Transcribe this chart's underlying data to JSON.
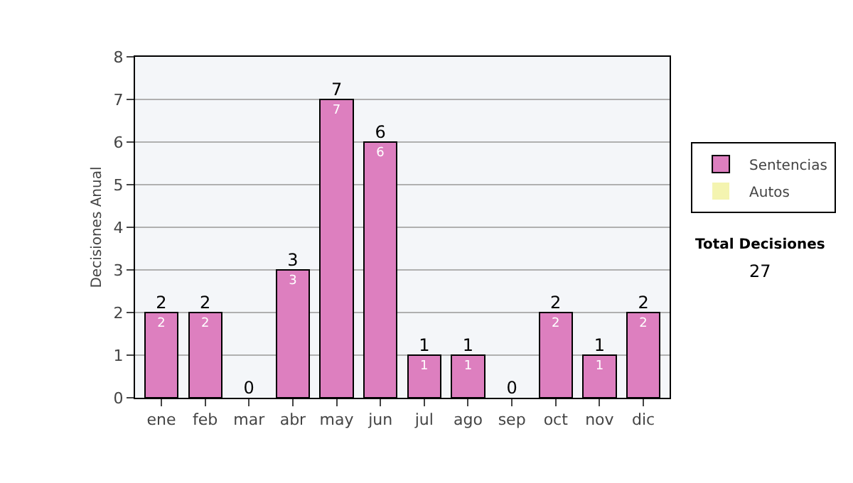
{
  "chart_data": {
    "type": "bar",
    "stacked": true,
    "ylabel": "Decisiones Anual",
    "categories": [
      "ene",
      "feb",
      "mar",
      "abr",
      "may",
      "jun",
      "jul",
      "ago",
      "sep",
      "oct",
      "nov",
      "dic"
    ],
    "series": [
      {
        "name": "Sentencias",
        "color": "#dd7fbf",
        "values": [
          2,
          2,
          0,
          3,
          7,
          6,
          1,
          1,
          0,
          2,
          1,
          2
        ],
        "value_labels": [
          "2",
          "2",
          null,
          "3",
          "7",
          "6",
          "1",
          "1",
          null,
          "2",
          "1",
          "2"
        ]
      },
      {
        "name": "Autos",
        "color": "#f4f4b0",
        "values": [
          0,
          0,
          0,
          0,
          0,
          0,
          0,
          0,
          0,
          0,
          0,
          0
        ]
      }
    ],
    "totals": [
      "2",
      "2",
      "0",
      "3",
      "7",
      "6",
      "1",
      "1",
      "0",
      "2",
      "1",
      "2"
    ],
    "ylim": [
      0,
      8
    ],
    "yticks": [
      0,
      1,
      2,
      3,
      4,
      5,
      6,
      7,
      8
    ],
    "grid": "y",
    "legend": "right",
    "annotations": [
      "Total Decisiones",
      "27"
    ]
  }
}
